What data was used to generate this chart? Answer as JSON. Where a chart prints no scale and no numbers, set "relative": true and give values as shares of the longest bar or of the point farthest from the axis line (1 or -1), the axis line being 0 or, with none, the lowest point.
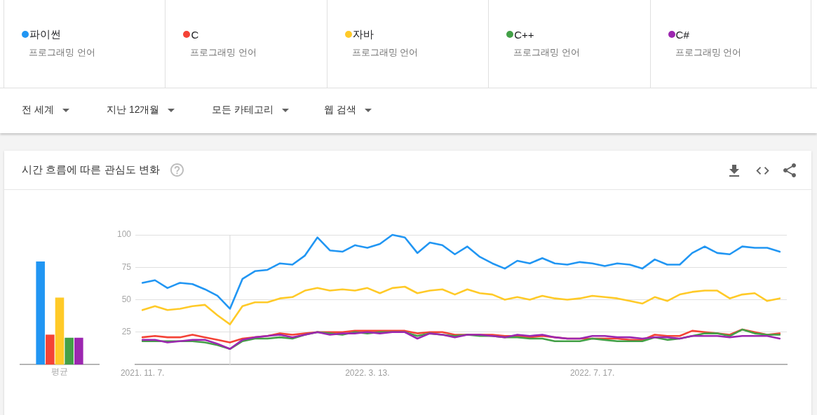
{
  "chart_data": [
    {
      "type": "other",
      "annotations": [
        "전 세계",
        "지난 12개월",
        "모든 카테고리",
        "웹 검색"
      ]
    },
    {
      "type": "bar",
      "relative": true,
      "categories": [
        "평균"
      ],
      "series": [
        {
          "color": "#2196f3",
          "values": [
            1
          ]
        },
        {
          "color": "#f44336",
          "values": [
            0.29
          ]
        },
        {
          "color": "#ffca28",
          "values": [
            0.65
          ]
        },
        {
          "color": "#43a047",
          "values": [
            0.26
          ]
        },
        {
          "color": "#9c27b0",
          "values": [
            0.26
          ]
        }
      ]
    },
    {
      "type": "line",
      "title": "시간 흐름에 따른 관심도 변화",
      "annotations": [
        "프로그래밍 언어",
        "프로그래밍 언어",
        "프로그래밍 언어",
        "프로그래밍 언어",
        "프로그래밍 언어"
      ],
      "legend": "top",
      "grid": "y",
      "x": [
        "2021-11-07",
        "2021-11-14",
        "2021-11-21",
        "2021-11-28",
        "2021-12-05",
        "2021-12-12",
        "2021-12-19",
        "2021-12-26",
        "2022-01-02",
        "2022-01-09",
        "2022-01-16",
        "2022-01-23",
        "2022-01-30",
        "2022-02-06",
        "2022-02-13",
        "2022-02-20",
        "2022-02-27",
        "2022-03-06",
        "2022-03-13",
        "2022-03-20",
        "2022-03-27",
        "2022-04-03",
        "2022-04-10",
        "2022-04-17",
        "2022-04-24",
        "2022-05-01",
        "2022-05-08",
        "2022-05-15",
        "2022-05-22",
        "2022-05-29",
        "2022-06-05",
        "2022-06-12",
        "2022-06-19",
        "2022-06-26",
        "2022-07-03",
        "2022-07-10",
        "2022-07-17",
        "2022-07-24",
        "2022-07-31",
        "2022-08-07",
        "2022-08-14",
        "2022-08-21",
        "2022-08-28",
        "2022-09-04",
        "2022-09-11",
        "2022-09-18",
        "2022-09-25",
        "2022-10-02",
        "2022-10-09",
        "2022-10-16",
        "2022-10-23",
        "2022-10-30"
      ],
      "xlim": [
        "2021-11-03",
        "2022-11-03"
      ],
      "xticks": [
        {
          "value": "2021-11-07",
          "label": "2021. 11. 7."
        },
        {
          "value": "2022-03-13",
          "label": "2022. 3. 13."
        },
        {
          "value": "2022-07-17",
          "label": "2022. 7. 17."
        }
      ],
      "ylim": [
        0,
        100
      ],
      "yticks": [
        25,
        50,
        75,
        100
      ],
      "ref_lines": [
        {
          "axis": "x",
          "value": "2021-12-26",
          "color": "#dddddd"
        }
      ],
      "series": [
        {
          "name": "파이썬",
          "color": "#2196f3",
          "values": [
            63,
            65,
            59,
            63,
            62,
            58,
            53,
            43,
            66,
            72,
            73,
            78,
            77,
            84,
            98,
            88,
            87,
            92,
            90,
            93,
            100,
            98,
            86,
            94,
            92,
            85,
            91,
            83,
            78,
            74,
            80,
            78,
            82,
            78,
            77,
            79,
            78,
            76,
            78,
            77,
            74,
            81,
            77,
            77,
            86,
            91,
            86,
            85,
            91,
            90,
            90,
            87
          ]
        },
        {
          "name": "C",
          "color": "#f44336",
          "values": [
            21,
            22,
            21,
            21,
            23,
            21,
            19,
            17,
            20,
            21,
            22,
            24,
            23,
            24,
            25,
            25,
            25,
            26,
            26,
            26,
            26,
            26,
            24,
            25,
            25,
            23,
            23,
            23,
            23,
            22,
            22,
            21,
            22,
            21,
            20,
            20,
            20,
            20,
            20,
            19,
            19,
            23,
            22,
            22,
            26,
            25,
            24,
            23,
            27,
            25,
            23,
            24
          ]
        },
        {
          "name": "자바",
          "color": "#ffca28",
          "values": [
            42,
            45,
            42,
            43,
            45,
            46,
            38,
            31,
            45,
            48,
            48,
            51,
            52,
            57,
            59,
            57,
            58,
            57,
            59,
            55,
            59,
            60,
            55,
            57,
            58,
            54,
            58,
            55,
            54,
            50,
            52,
            50,
            53,
            51,
            50,
            51,
            53,
            52,
            51,
            49,
            47,
            52,
            49,
            54,
            56,
            57,
            57,
            51,
            54,
            55,
            49,
            51
          ]
        },
        {
          "name": "C++",
          "color": "#43a047",
          "values": [
            18,
            18,
            18,
            18,
            18,
            17,
            15,
            12,
            18,
            20,
            20,
            21,
            20,
            23,
            25,
            24,
            23,
            25,
            24,
            25,
            25,
            25,
            22,
            24,
            23,
            22,
            23,
            22,
            22,
            21,
            21,
            20,
            20,
            18,
            18,
            18,
            20,
            19,
            18,
            18,
            18,
            21,
            19,
            20,
            22,
            24,
            24,
            22,
            27,
            24,
            23,
            23
          ]
        },
        {
          "name": "C#",
          "color": "#9c27b0",
          "values": [
            19,
            19,
            17,
            18,
            19,
            19,
            16,
            12,
            19,
            21,
            22,
            23,
            21,
            23,
            25,
            23,
            24,
            24,
            25,
            24,
            25,
            25,
            20,
            24,
            23,
            21,
            23,
            23,
            22,
            21,
            23,
            22,
            23,
            21,
            20,
            20,
            22,
            22,
            21,
            21,
            20,
            21,
            21,
            20,
            22,
            22,
            22,
            21,
            22,
            22,
            22,
            20
          ]
        }
      ]
    }
  ]
}
